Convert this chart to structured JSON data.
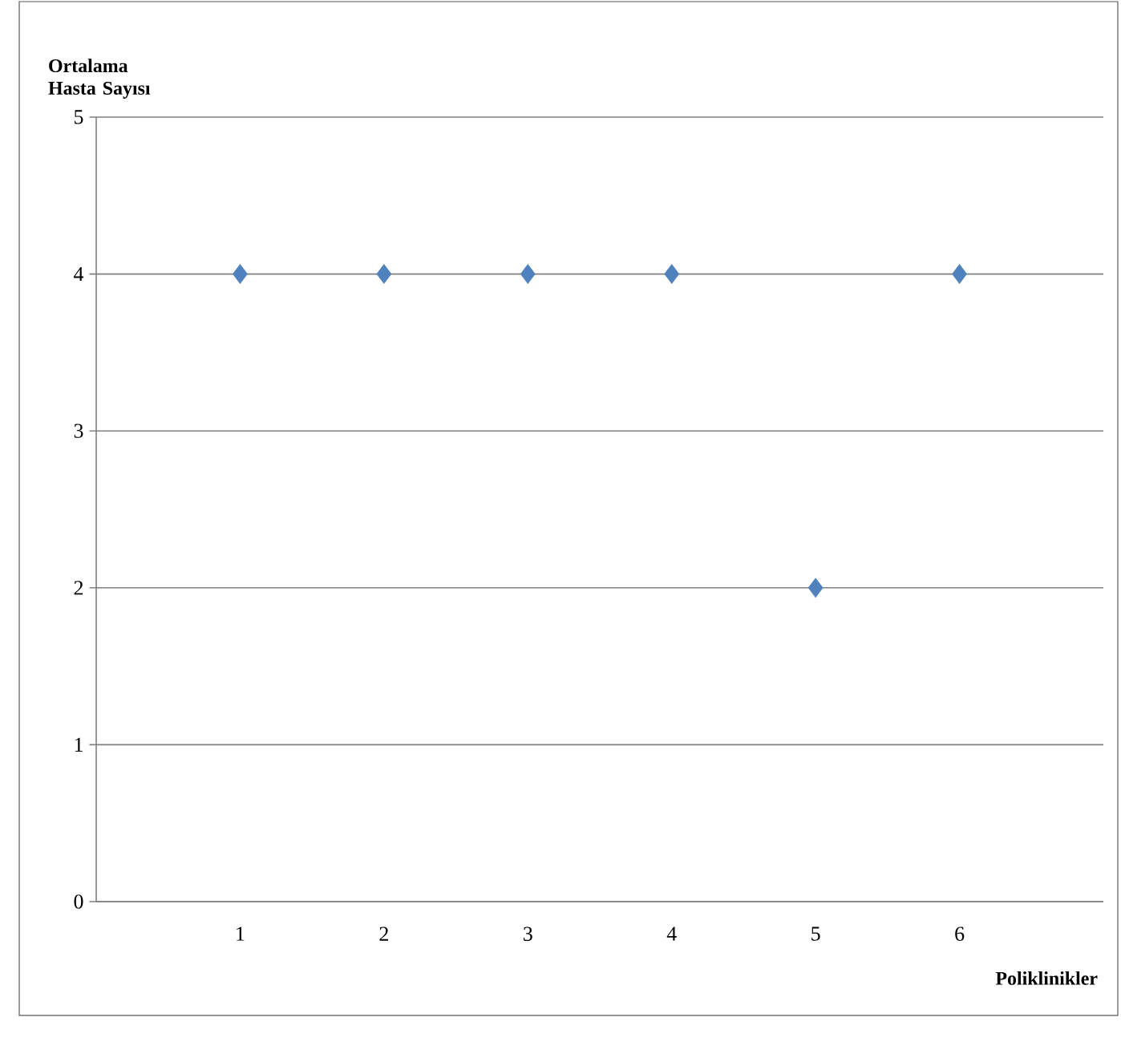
{
  "chart_data": {
    "type": "scatter",
    "xlabel": "Poliklinikler",
    "ylabel": "Ortalama Hasta Sayısı",
    "categories": [
      "1",
      "2",
      "3",
      "4",
      "5",
      "6"
    ],
    "values": [
      4,
      4,
      4,
      4,
      2,
      4
    ],
    "color": "#4f81bd",
    "marker": "diamond",
    "ylim": [
      0,
      5
    ],
    "yticks": [
      0,
      1,
      2,
      3,
      4,
      5
    ],
    "grid": "y"
  }
}
